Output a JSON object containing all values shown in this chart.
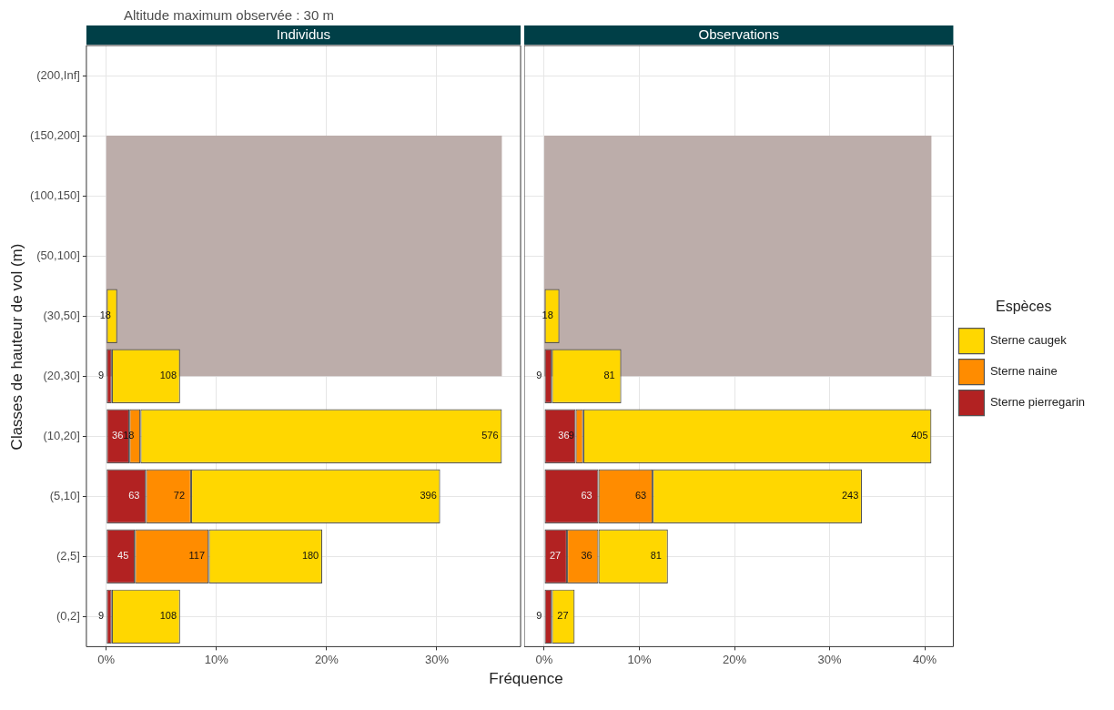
{
  "chart_data": [
    {
      "type": "bar",
      "title": "Individus",
      "ylabel": "Classes de hauteur de vol (m)",
      "xlabel": "Fréquence",
      "orientation": "horizontal",
      "stacked": true,
      "categories": [
        "(200,Inf]",
        "(150,200]",
        "(100,150]",
        "(50,100]",
        "(30,50]",
        "(20,30]",
        "(10,20]",
        "(5,10]",
        "(2,5]",
        "(0,2]"
      ],
      "series": [
        {
          "color": "#b22222",
          "values": [
            null,
            null,
            null,
            null,
            null,
            0.5,
            2.1,
            3.6,
            2.6,
            0.5
          ]
        },
        {
          "color": "#ff8c00",
          "values": [
            null,
            null,
            null,
            null,
            null,
            null,
            1.0,
            4.1,
            6.7,
            null
          ]
        },
        {
          "color": "#ffd700",
          "values": [
            0,
            0,
            0,
            0,
            1.0,
            6.2,
            32.8,
            22.6,
            10.3,
            6.2
          ]
        }
      ],
      "annotations": [
        "Altitude maximum observée : 30 m",
        {
          "text": "18",
          "x": 1.0,
          "y": "(30,50]"
        },
        {
          "text": "9",
          "x": 0.5,
          "y": "(20,30]"
        },
        {
          "text": "108",
          "x": 6.7,
          "y": "(20,30]"
        },
        {
          "text": "36",
          "x": 2.1,
          "y": "(10,20]"
        },
        {
          "text": "18",
          "x": 3.1,
          "y": "(10,20]"
        },
        {
          "text": "576",
          "x": 35.9,
          "y": "(10,20]"
        },
        {
          "text": "63",
          "x": 3.6,
          "y": "(5,10]"
        },
        {
          "text": "72",
          "x": 7.7,
          "y": "(5,10]"
        },
        {
          "text": "396",
          "x": 30.3,
          "y": "(5,10]"
        },
        {
          "text": "45",
          "x": 2.6,
          "y": "(2,5]"
        },
        {
          "text": "117",
          "x": 9.3,
          "y": "(2,5]"
        },
        {
          "text": "180",
          "x": 19.6,
          "y": "(2,5]"
        },
        {
          "text": "9",
          "x": 0.5,
          "y": "(0,2]"
        },
        {
          "text": "108",
          "x": 6.7,
          "y": "(0,2]"
        }
      ],
      "bands": [
        {
          "axis": "y",
          "from": "(20,30]",
          "to": "(150,200]",
          "color": "#bcadaa"
        }
      ],
      "xlim": [
        -1.8,
        37.6
      ],
      "xticks": [
        {
          "value": 0,
          "label": "0%"
        },
        {
          "value": 10,
          "label": "10%"
        },
        {
          "value": 20,
          "label": "20%"
        },
        {
          "value": 30,
          "label": "30%"
        }
      ],
      "grid": true
    },
    {
      "type": "bar",
      "title": "Observations",
      "legend_title": "Espèces",
      "orientation": "horizontal",
      "stacked": true,
      "categories": [
        "(200,Inf]",
        "(150,200]",
        "(100,150]",
        "(50,100]",
        "(30,50]",
        "(20,30]",
        "(10,20]",
        "(5,10]",
        "(2,5]",
        "(0,2]"
      ],
      "series": [
        {
          "name": "Sterne pierregarin",
          "color": "#b22222",
          "values": [
            null,
            null,
            null,
            null,
            null,
            0.8,
            3.3,
            5.7,
            2.4,
            0.8
          ]
        },
        {
          "name": "Sterne naine",
          "color": "#ff8c00",
          "values": [
            null,
            null,
            null,
            null,
            null,
            null,
            0.8,
            5.7,
            3.3,
            null
          ]
        },
        {
          "name": "Sterne caugek",
          "color": "#ffd700",
          "values": [
            0,
            0,
            0,
            0,
            1.6,
            7.3,
            36.6,
            22.0,
            7.3,
            2.4
          ]
        }
      ],
      "annotations": [
        {
          "text": "18",
          "x": 1.6,
          "y": "(30,50]"
        },
        {
          "text": "9",
          "x": 0.8,
          "y": "(20,30]"
        },
        {
          "text": "81",
          "x": 8.1,
          "y": "(20,30]"
        },
        {
          "text": "36",
          "x": 3.3,
          "y": "(10,20]"
        },
        {
          "text": "9",
          "x": 4.1,
          "y": "(10,20]"
        },
        {
          "text": "405",
          "x": 40.7,
          "y": "(10,20]"
        },
        {
          "text": "63",
          "x": 5.7,
          "y": "(5,10]"
        },
        {
          "text": "63",
          "x": 11.4,
          "y": "(5,10]"
        },
        {
          "text": "243",
          "x": 33.4,
          "y": "(5,10]"
        },
        {
          "text": "27",
          "x": 2.4,
          "y": "(2,5]"
        },
        {
          "text": "36",
          "x": 5.7,
          "y": "(2,5]"
        },
        {
          "text": "81",
          "x": 13.0,
          "y": "(2,5]"
        },
        {
          "text": "9",
          "x": 0.8,
          "y": "(0,2]"
        },
        {
          "text": "27",
          "x": 3.2,
          "y": "(0,2]"
        }
      ],
      "bands": [
        {
          "axis": "y",
          "from": "(20,30]",
          "to": "(150,200]",
          "color": "#bcadaa"
        }
      ],
      "xlim": [
        -2.1,
        43
      ],
      "xticks": [
        {
          "value": 0,
          "label": "0%"
        },
        {
          "value": 10,
          "label": "10%"
        },
        {
          "value": 20,
          "label": "20%"
        },
        {
          "value": 30,
          "label": "30%"
        },
        {
          "value": 40,
          "label": "40%"
        }
      ],
      "grid": true,
      "legend": "right",
      "tick_labels": "x"
    }
  ]
}
